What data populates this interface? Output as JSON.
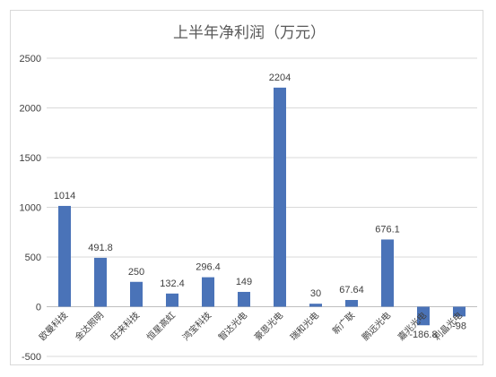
{
  "chart_data": {
    "type": "bar",
    "title": "上半年净利润（万元）",
    "categories": [
      "欧曼科技",
      "金达照明",
      "旺来科技",
      "恒星高虹",
      "鸿宝科技",
      "智达光电",
      "豪恩光电",
      "瑞和光电",
      "新广联",
      "鹏远光电",
      "嘉兆光电",
      "利晶光电"
    ],
    "values": [
      1014,
      491.8,
      250,
      132.4,
      296.4,
      149,
      2204,
      30,
      67.64,
      676.1,
      -186.8,
      -98
    ],
    "data_labels": [
      "1014",
      "491.8",
      "250",
      "132.4",
      "296.4",
      "149",
      "2204",
      "30",
      "67.64",
      "676.1",
      "-186.8",
      "-98"
    ],
    "ylim": [
      -500,
      2500
    ],
    "yticks": [
      -500,
      0,
      500,
      1000,
      1500,
      2000,
      2500
    ],
    "grid": true,
    "bar_color": "#4a73b8"
  }
}
